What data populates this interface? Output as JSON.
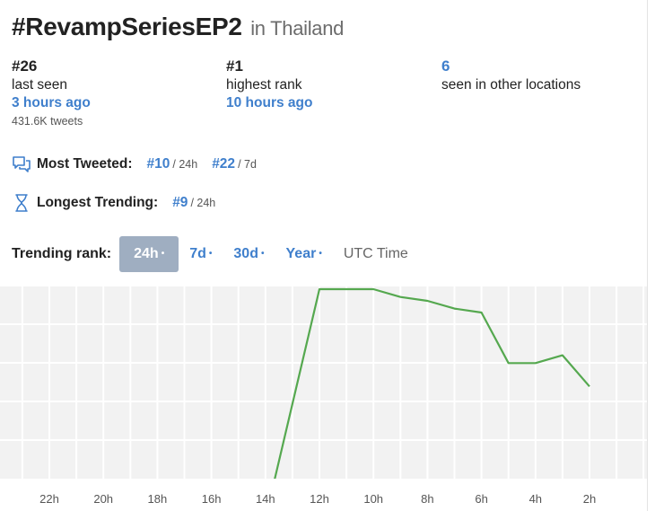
{
  "header": {
    "hashtag": "#RevampSeriesEP2",
    "location": "in Thailand"
  },
  "stats": {
    "current": {
      "rank": "#26",
      "label": "last seen",
      "time": "3 hours ago",
      "tweets": "431.6K tweets"
    },
    "highest": {
      "rank": "#1",
      "label": "highest rank",
      "time": "10 hours ago"
    },
    "other": {
      "count": "6",
      "label": "seen in other locations"
    }
  },
  "most_tweeted": {
    "icon": "chat-bubbles-icon",
    "label": "Most Tweeted:",
    "rank_24h": "#10",
    "per_24h": "/ 24h",
    "rank_7d": "#22",
    "per_7d": "/ 7d"
  },
  "longest_trending": {
    "icon": "hourglass-icon",
    "label": "Longest Trending:",
    "rank": "#9",
    "per": "/ 24h"
  },
  "trending_rank": {
    "label": "Trending rank:",
    "tabs": [
      {
        "label": "24h",
        "dot": "•",
        "active": true
      },
      {
        "label": "7d",
        "dot": "•",
        "active": false
      },
      {
        "label": "30d",
        "dot": "•",
        "active": false
      },
      {
        "label": "Year",
        "dot": "•",
        "active": false
      }
    ],
    "utc": "UTC Time"
  },
  "colors": {
    "accent": "#3f7fcc",
    "line": "#55a84f",
    "grid_bg": "#f2f2f2",
    "active_tab": "#9faec1"
  },
  "chart_data": {
    "type": "line",
    "xlabel": "",
    "ylabel": "",
    "x_ticks": [
      "22h",
      "20h",
      "18h",
      "16h",
      "14h",
      "12h",
      "10h",
      "8h",
      "6h",
      "4h",
      "2h"
    ],
    "x_order": "hours ago, decreasing left to right",
    "series": [
      {
        "values": [
          {
            "x": 14.0,
            "y": 60
          },
          {
            "x": 12.0,
            "y": 1
          },
          {
            "x": 11.0,
            "y": 1
          },
          {
            "x": 10.0,
            "y": 1
          },
          {
            "x": 9.0,
            "y": 3
          },
          {
            "x": 8.0,
            "y": 4
          },
          {
            "x": 7.0,
            "y": 6
          },
          {
            "x": 6.0,
            "y": 7
          },
          {
            "x": 5.0,
            "y": 20
          },
          {
            "x": 4.0,
            "y": 20
          },
          {
            "x": 3.0,
            "y": 18
          },
          {
            "x": 2.0,
            "y": 26
          }
        ]
      }
    ],
    "y_scale": "rank, inverted (#1 at top)",
    "grid": true
  }
}
